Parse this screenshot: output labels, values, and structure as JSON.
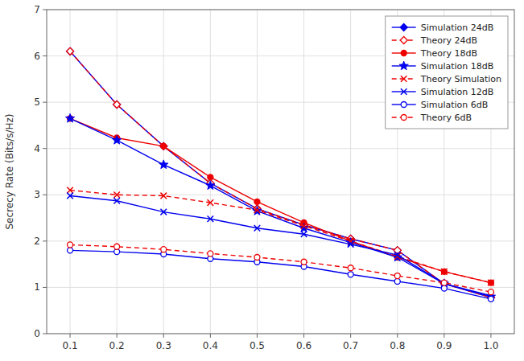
{
  "chart_data": {
    "type": "line",
    "ylabel": "Secrecy Rate (Bits/s/Hz)",
    "x": [
      0.1,
      0.2,
      0.3,
      0.4,
      0.5,
      0.6,
      0.7,
      0.8,
      0.9,
      1.0
    ],
    "series": [
      {
        "name": "Simulation 24dB",
        "color": "#0000EE",
        "marker": "diamond",
        "line_style": "solid",
        "values": [
          6.1,
          4.95,
          4.05,
          3.25,
          2.7,
          2.35,
          2.05,
          1.8,
          1.08,
          0.78
        ]
      },
      {
        "name": "Theory 24dB",
        "color": "#EE0000",
        "marker": "open-diamond",
        "line_style": "dashed",
        "values": [
          6.1,
          4.95,
          4.05,
          3.25,
          2.7,
          2.35,
          2.05,
          1.8,
          1.08,
          0.78
        ]
      },
      {
        "name": "Theory 18dB",
        "color": "#EE0000",
        "marker": "circle",
        "line_style": "solid",
        "values": [
          4.65,
          4.23,
          4.05,
          3.38,
          2.85,
          2.4,
          2.0,
          1.65,
          1.34,
          1.1
        ]
      },
      {
        "name": "Simulation 18dB",
        "color": "#0000EE",
        "marker": "star",
        "line_style": "solid",
        "values": [
          4.65,
          4.18,
          3.65,
          3.2,
          2.65,
          2.28,
          1.97,
          1.65,
          1.08,
          0.8
        ]
      },
      {
        "name": "Theory Simulation",
        "color": "#EE0000",
        "marker": "x",
        "line_style": "dashed",
        "values": [
          3.1,
          3.0,
          2.98,
          2.83,
          2.67,
          2.33,
          2.0,
          1.67,
          1.34,
          1.1
        ]
      },
      {
        "name": "Simulation 12dB",
        "color": "#0000EE",
        "marker": "x",
        "line_style": "solid",
        "values": [
          2.98,
          2.87,
          2.63,
          2.48,
          2.28,
          2.15,
          1.93,
          1.7,
          1.08,
          0.82
        ]
      },
      {
        "name": "Simulation 6dB",
        "color": "#0000EE",
        "marker": "open-circle",
        "line_style": "solid",
        "values": [
          1.8,
          1.77,
          1.72,
          1.62,
          1.55,
          1.45,
          1.28,
          1.13,
          0.98,
          0.75
        ]
      },
      {
        "name": "Theory 6dB",
        "color": "#EE0000",
        "marker": "open-circle",
        "line_style": "dashed",
        "values": [
          1.92,
          1.88,
          1.82,
          1.73,
          1.65,
          1.55,
          1.42,
          1.25,
          1.1,
          0.9
        ]
      }
    ],
    "xlim": [
      0.05,
      1.05
    ],
    "xticks": [
      0.1,
      0.2,
      0.3,
      0.4,
      0.5,
      0.6,
      0.7,
      0.8,
      0.9,
      {
        "value": 1.0,
        "label": "1.0"
      }
    ],
    "ylim": [
      0,
      7
    ],
    "yticks": [
      0,
      1,
      2,
      3,
      4,
      5,
      6,
      7
    ],
    "grid": true,
    "legend": "upper right"
  }
}
